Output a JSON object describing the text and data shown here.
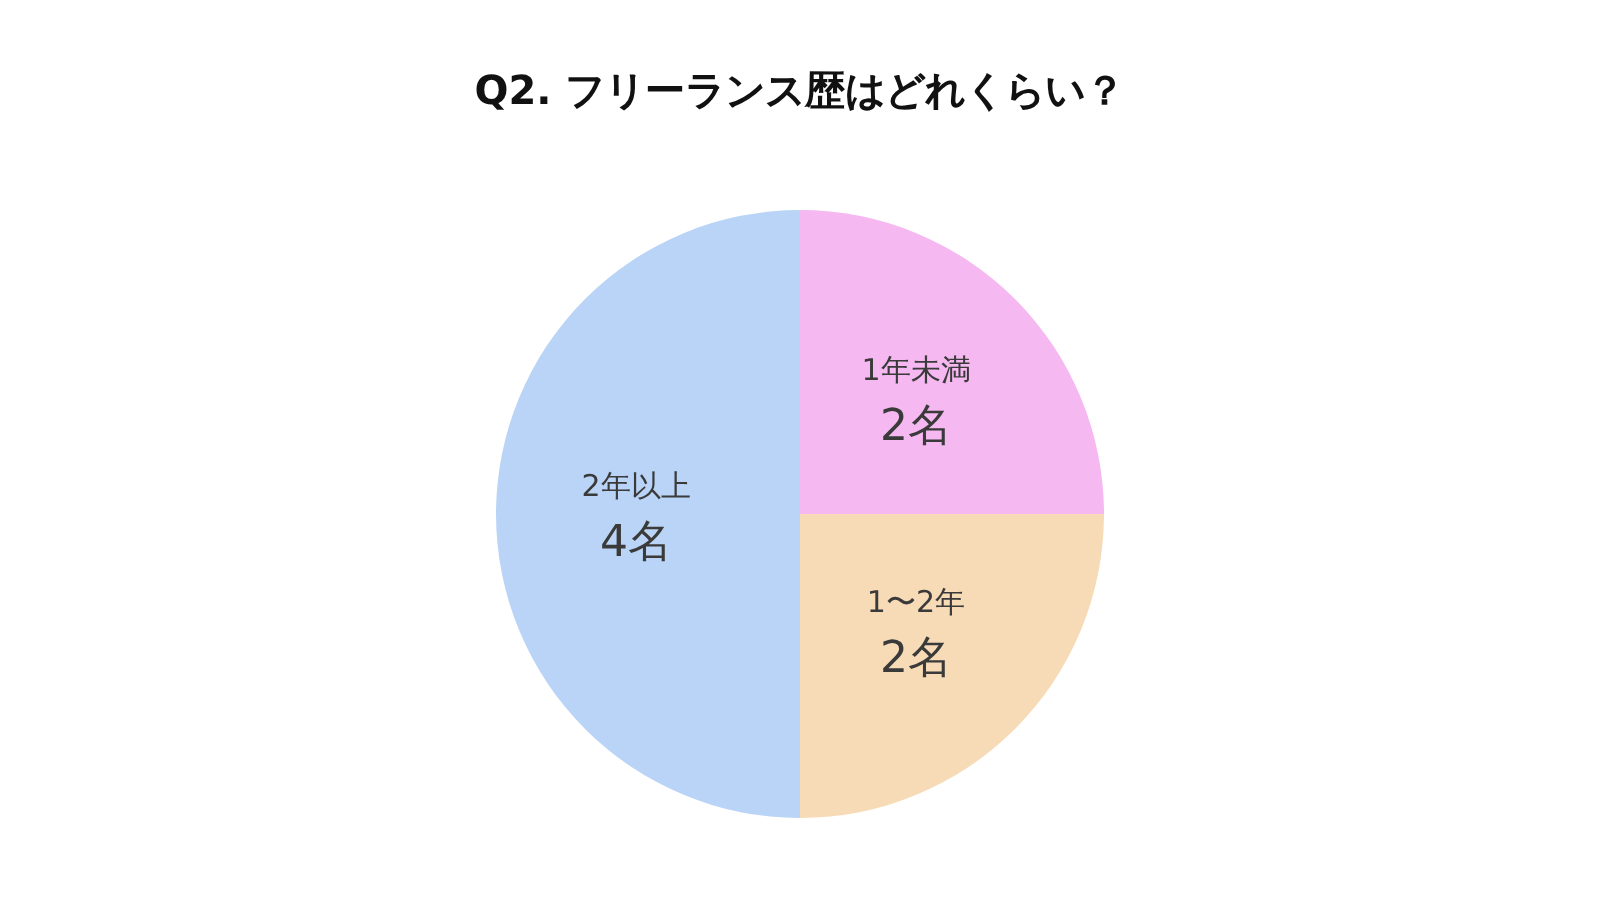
{
  "chart_data": {
    "type": "pie",
    "title": "Q2. フリーランス歴はどれくらい？",
    "categories": [
      "1年未満",
      "1〜2年",
      "2年以上"
    ],
    "values": [
      2,
      2,
      4
    ],
    "colors": [
      "#f5b8f1",
      "#f6dbb6",
      "#b9d4f6"
    ],
    "value_labels": [
      "2名",
      "2名",
      "4名"
    ],
    "legend": false
  }
}
